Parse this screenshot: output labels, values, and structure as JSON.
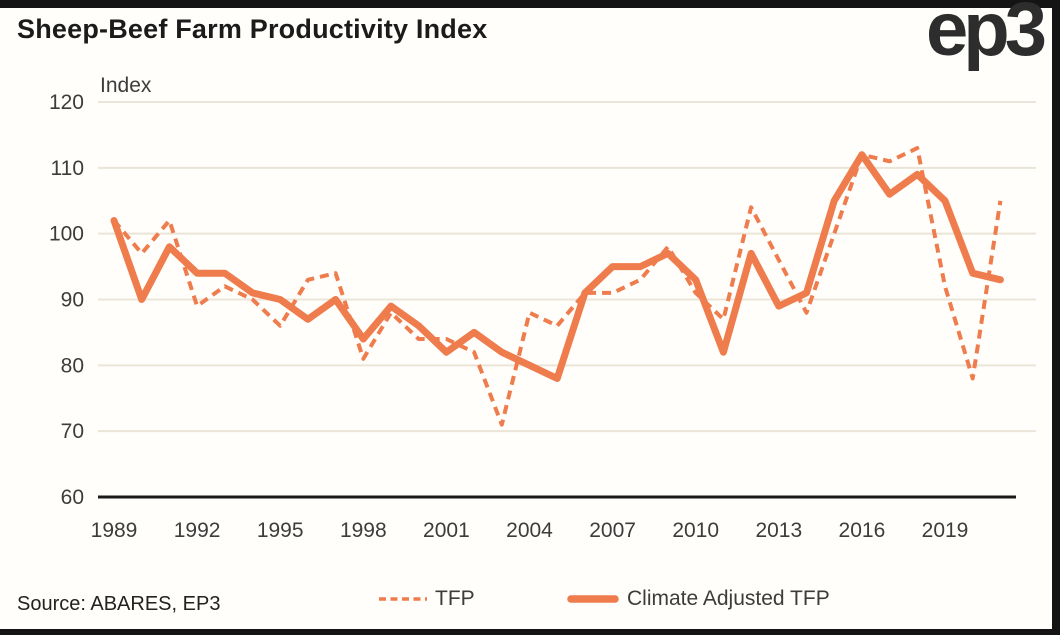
{
  "header": {
    "title": "Sheep-Beef Farm Productivity Index",
    "logo": "ep3"
  },
  "source": {
    "label": "Source: ABARES, EP3"
  },
  "legend": {
    "items": [
      {
        "label": "TFP",
        "style": "dashed"
      },
      {
        "label": "Climate Adjusted TFP",
        "style": "solid"
      }
    ]
  },
  "colors": {
    "line_orange": "#EF7C4D",
    "gridline": "#EAE5D8",
    "axis_black": "#1A1A1A",
    "tick_text": "#3C3C3C",
    "frame_bar": "#141414",
    "background": "#FFFEFA"
  },
  "chart_data": {
    "type": "line",
    "title": "Sheep-Beef Farm Productivity Index",
    "ylabel": "Index",
    "ylim": [
      60,
      120
    ],
    "yticks": [
      120,
      110,
      100,
      90,
      80,
      70,
      60
    ],
    "xticks": [
      1989,
      1992,
      1995,
      1998,
      2001,
      2004,
      2007,
      2010,
      2013,
      2016,
      2019
    ],
    "grid": true,
    "legend_position": "bottom",
    "x": [
      1989,
      1990,
      1991,
      1992,
      1993,
      1994,
      1995,
      1996,
      1997,
      1998,
      1999,
      2000,
      2001,
      2002,
      2003,
      2004,
      2005,
      2006,
      2007,
      2008,
      2009,
      2010,
      2011,
      2012,
      2013,
      2014,
      2015,
      2016,
      2017,
      2018,
      2019,
      2020,
      2021
    ],
    "series": [
      {
        "name": "TFP",
        "style": "dashed",
        "color": "#EF7C4D",
        "values": [
          102,
          97,
          102,
          89,
          92,
          90,
          86,
          93,
          94,
          81,
          88,
          84,
          84,
          82,
          71,
          88,
          86,
          91,
          91,
          93,
          98,
          91,
          87,
          104,
          96,
          88,
          100,
          112,
          111,
          113,
          92,
          78,
          105
        ]
      },
      {
        "name": "Climate Adjusted TFP",
        "style": "solid",
        "color": "#EF7C4D",
        "values": [
          102,
          90,
          98,
          94,
          94,
          91,
          90,
          87,
          90,
          84,
          89,
          86,
          82,
          85,
          82,
          80,
          78,
          91,
          95,
          95,
          97,
          93,
          82,
          97,
          89,
          91,
          105,
          112,
          106,
          109,
          105,
          94,
          93
        ]
      }
    ]
  }
}
